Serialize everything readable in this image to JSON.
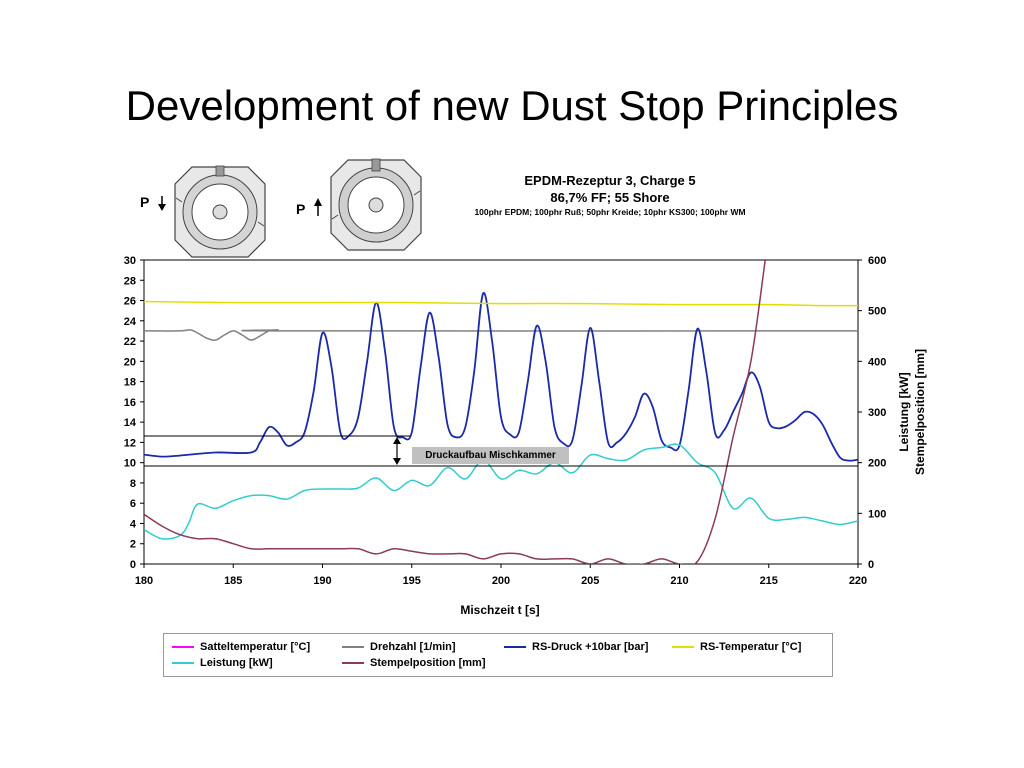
{
  "slide": {
    "title": "Development of new Dust Stop Principles"
  },
  "diagrams": [
    {
      "label": "P",
      "arrow": "down"
    },
    {
      "label": "P",
      "arrow": "up"
    }
  ],
  "annotation": "Druckaufbau Mischkammer",
  "colors": {
    "satteltemperatur": "#ff00ff",
    "drehzahl": "#808080",
    "rsdruck": "#1a2aa8",
    "rstemperatur": "#e0e000",
    "leistung": "#33cccc",
    "stempelposition": "#8b3a5a"
  },
  "chart_data": {
    "type": "line",
    "title": "EPDM-Rezeptur 3, Charge 5",
    "subtitle": "86,7% FF; 55 Shore",
    "subtitle2": "100phr EPDM; 100phr Ruß; 50phr Kreide; 10phr KS300; 100phr WM",
    "xlabel": "Mischzeit t [s]",
    "ylabel": "",
    "y2label_1": "Leistung [kW]",
    "y2label_2": "Stempelposition [mm]",
    "xlim": [
      180,
      220
    ],
    "ylim": [
      0,
      30
    ],
    "y2lim": [
      0,
      600
    ],
    "xticks": [
      "180",
      "185",
      "190",
      "195",
      "200",
      "205",
      "210",
      "215",
      "220"
    ],
    "yticks": [
      "0",
      "2",
      "4",
      "6",
      "8",
      "10",
      "12",
      "14",
      "16",
      "18",
      "20",
      "22",
      "24",
      "26",
      "28",
      "30"
    ],
    "y2ticks": [
      "0",
      "100",
      "200",
      "300",
      "400",
      "500",
      "600"
    ],
    "legend_position": "bottom",
    "series": [
      {
        "name": "Satteltemperatur [°C]",
        "key": "satteltemperatur",
        "axis": "left",
        "x": [],
        "y": []
      },
      {
        "name": "Drehzahl [1/min]",
        "key": "drehzahl",
        "axis": "left",
        "x": [
          180,
          182,
          182.6,
          183,
          183.5,
          184,
          184.5,
          185,
          185.5,
          186,
          186.5,
          187,
          187.5,
          188,
          220
        ],
        "y": [
          23,
          23,
          23.1,
          22.8,
          22.3,
          22.1,
          22.6,
          23.0,
          22.6,
          22.1,
          22.5,
          23.0,
          23.1,
          23.0,
          23.0
        ]
      },
      {
        "name": "RS-Druck +10bar [bar]",
        "key": "rsdruck",
        "axis": "left",
        "x": [
          180,
          181,
          182,
          184,
          186,
          186.5,
          187,
          187.5,
          188,
          188.5,
          189,
          189.5,
          190,
          190.5,
          191,
          191.5,
          192,
          192.5,
          193,
          193.5,
          194,
          194.5,
          195,
          195.5,
          196,
          196.5,
          197,
          197.5,
          198,
          198.5,
          199,
          199.5,
          200,
          200.5,
          201,
          201.5,
          202,
          202.5,
          203,
          203.5,
          204,
          204.5,
          205,
          205.5,
          206,
          206.5,
          207,
          207.5,
          208,
          208.5,
          209,
          209.5,
          210,
          210.5,
          211,
          211.5,
          212,
          212.5,
          213,
          213.5,
          214,
          214.5,
          215,
          215.5,
          216,
          216.5,
          217,
          217.5,
          218,
          218.5,
          219,
          219.5,
          220
        ],
        "y": [
          10.8,
          10.6,
          10.7,
          11.0,
          11.0,
          12.0,
          13.5,
          13.0,
          11.7,
          12.0,
          13.0,
          17.0,
          22.8,
          19.5,
          13.0,
          12.7,
          14.5,
          20.0,
          25.8,
          21.0,
          13.5,
          12.5,
          13.0,
          19.5,
          24.8,
          20.5,
          13.8,
          12.5,
          13.5,
          19.0,
          26.7,
          22.0,
          14.5,
          12.8,
          13.0,
          18.0,
          23.5,
          20.0,
          13.5,
          11.9,
          12.2,
          17.5,
          23.3,
          18.0,
          12.0,
          12.0,
          12.9,
          14.5,
          16.8,
          15.5,
          12.2,
          11.5,
          11.7,
          17.0,
          23.2,
          19.0,
          12.9,
          13.2,
          15.0,
          16.8,
          18.9,
          17.5,
          14.0,
          13.4,
          13.6,
          14.2,
          15.0,
          14.8,
          13.8,
          12.0,
          10.5,
          10.2,
          10.3
        ]
      },
      {
        "name": "RS-Temperatur [°C]",
        "key": "rstemperatur",
        "axis": "left",
        "x": [
          180,
          185,
          190,
          195,
          200,
          205,
          210,
          215,
          218,
          220
        ],
        "y": [
          25.9,
          25.8,
          25.8,
          25.8,
          25.7,
          25.7,
          25.6,
          25.6,
          25.5,
          25.5
        ]
      },
      {
        "name": "Leistung [kW]",
        "key": "leistung",
        "axis": "right",
        "x": [
          180,
          181,
          182,
          182.5,
          183,
          184,
          185,
          186,
          187,
          188,
          189,
          190,
          191,
          192,
          193,
          194,
          195,
          196,
          197,
          198,
          199,
          200,
          201,
          202,
          203,
          204,
          205,
          206,
          207,
          208,
          209,
          210,
          211,
          212,
          213,
          214,
          215,
          216,
          217,
          218,
          219,
          220
        ],
        "y": [
          68,
          50,
          56,
          80,
          118,
          110,
          125,
          135,
          135,
          128,
          145,
          148,
          148,
          150,
          170,
          145,
          165,
          155,
          190,
          168,
          205,
          168,
          185,
          178,
          200,
          180,
          215,
          208,
          205,
          225,
          230,
          235,
          200,
          180,
          110,
          130,
          90,
          88,
          92,
          85,
          78,
          85
        ]
      },
      {
        "name": "Stempelposition [mm]",
        "key": "stempelposition",
        "axis": "right",
        "x": [
          180,
          181,
          182,
          183,
          184,
          185,
          186,
          187,
          188,
          189,
          190,
          191,
          192,
          193,
          194,
          195,
          196,
          197,
          198,
          199,
          200,
          201,
          202,
          203,
          204,
          205,
          206,
          207,
          208,
          209,
          210,
          211,
          212,
          213,
          214,
          214.8
        ],
        "y": [
          98,
          75,
          58,
          50,
          50,
          40,
          30,
          30,
          30,
          30,
          30,
          30,
          30,
          20,
          30,
          25,
          20,
          20,
          20,
          10,
          20,
          20,
          10,
          10,
          10,
          0,
          10,
          0,
          0,
          10,
          0,
          5,
          90,
          250,
          400,
          600
        ]
      }
    ]
  },
  "legend_rows": [
    [
      "Satteltemperatur [°C]",
      "Drehzahl [1/min]",
      "RS-Druck +10bar [bar]",
      "RS-Temperatur [°C]"
    ],
    [
      "Leistung [kW]",
      "Stempelposition [mm]"
    ]
  ]
}
